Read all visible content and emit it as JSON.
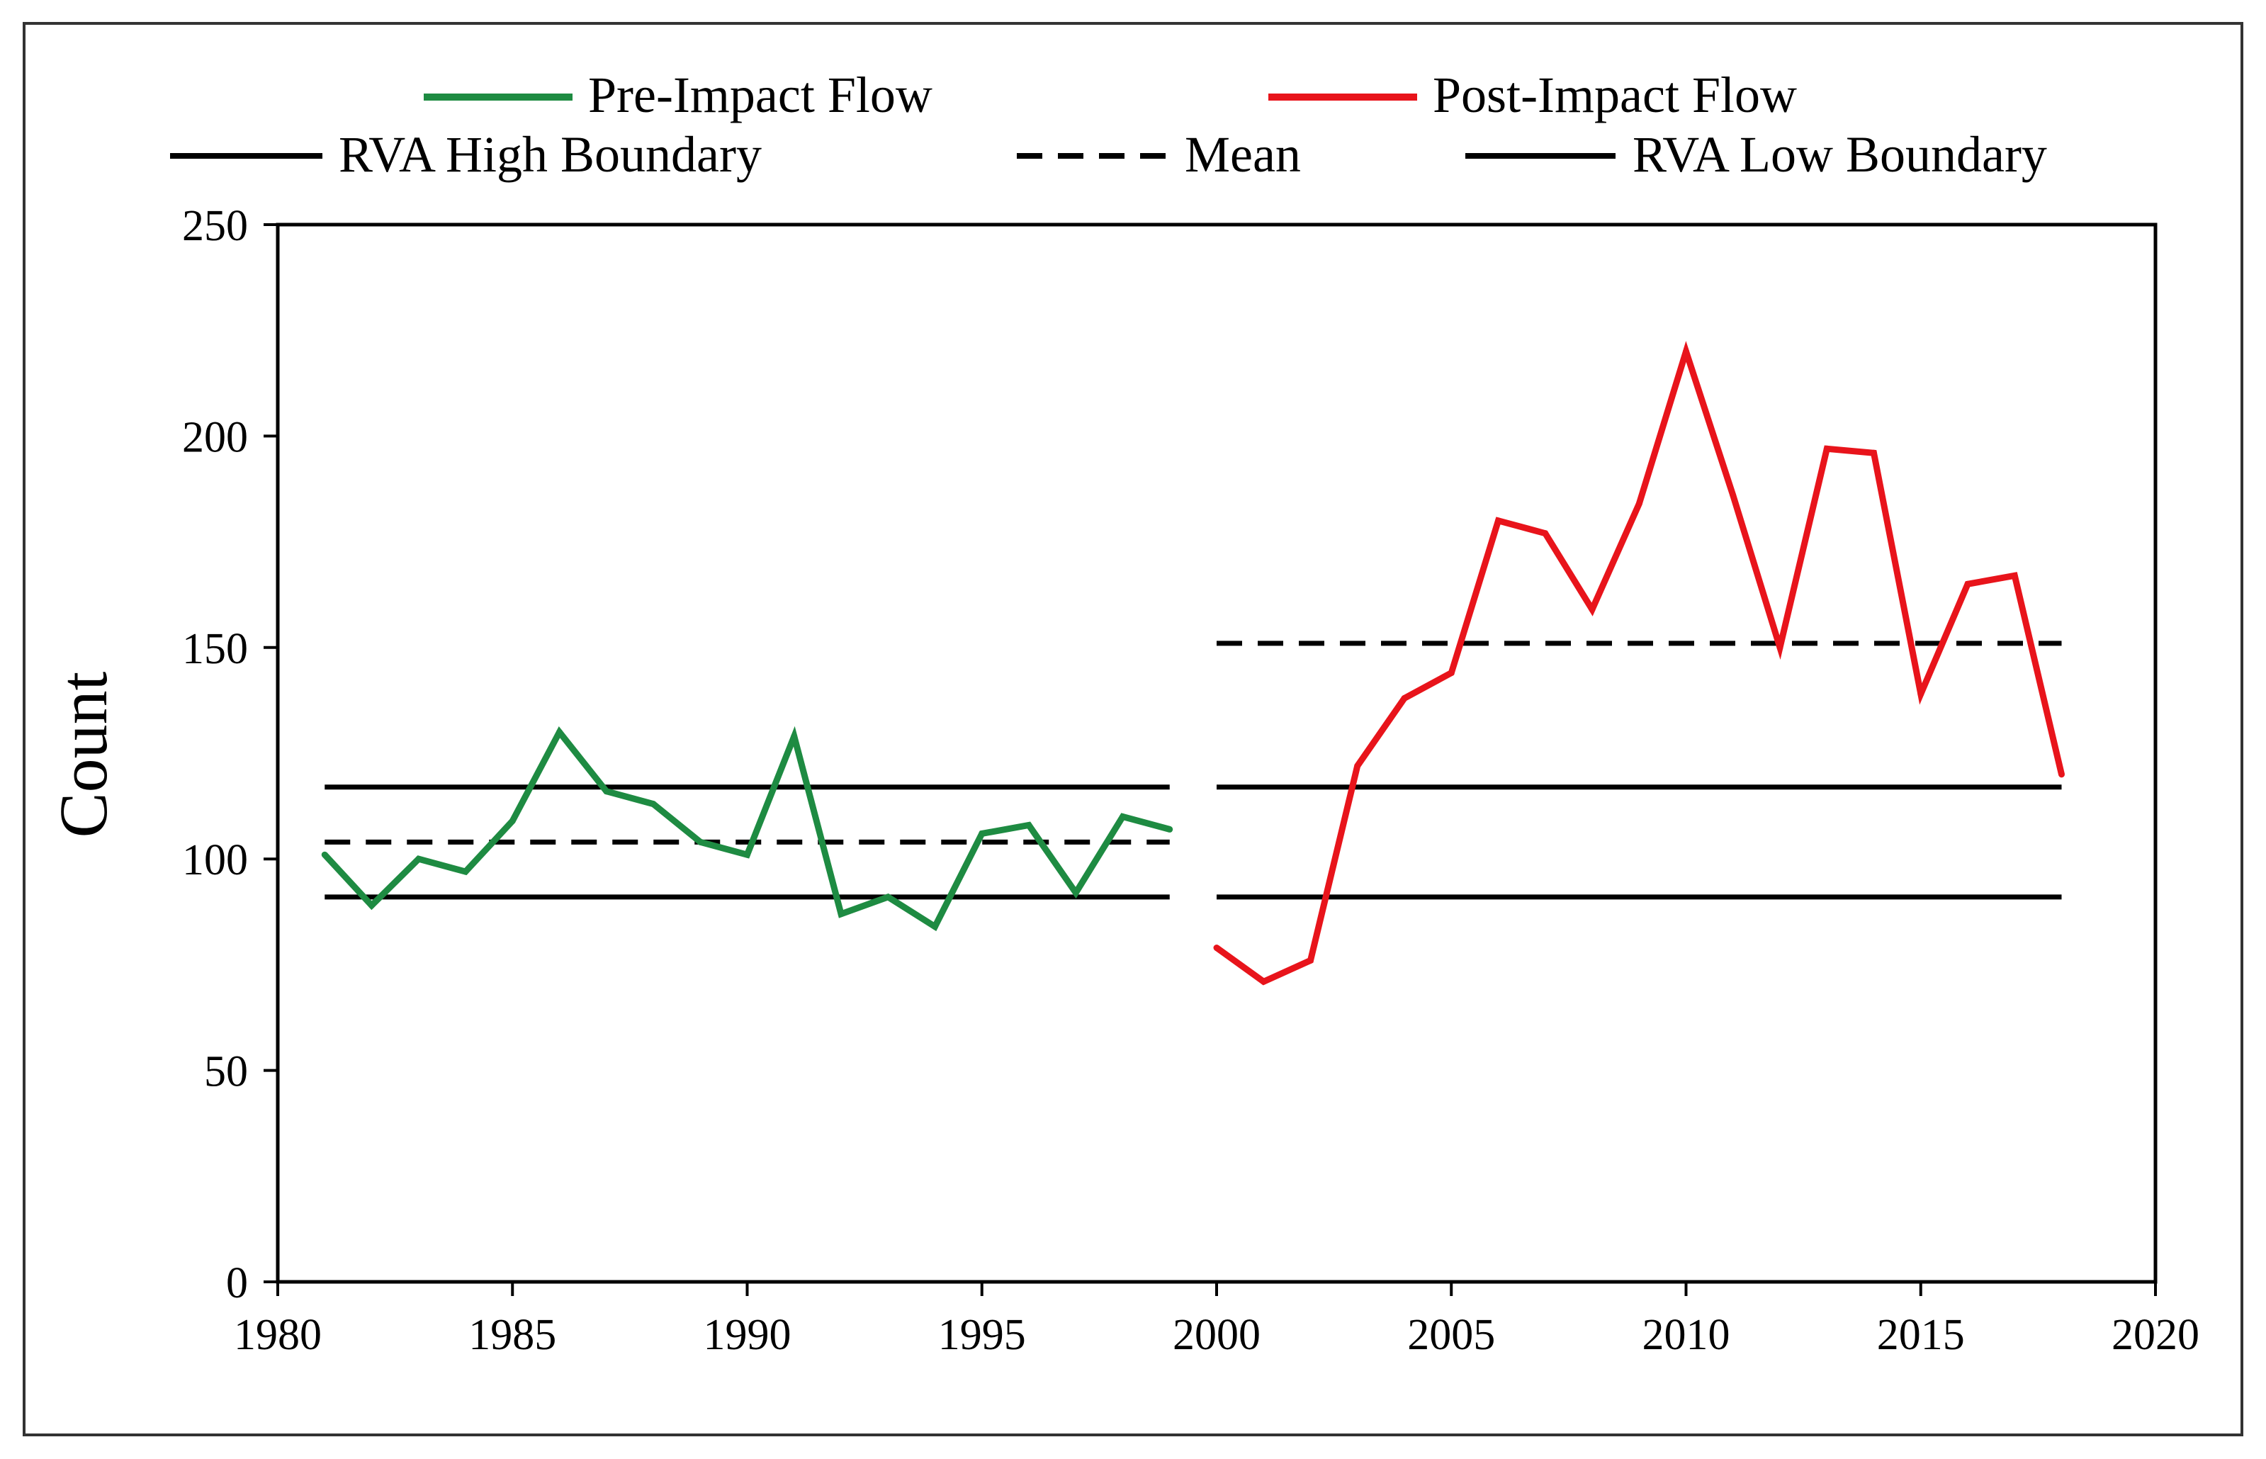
{
  "chart_data": {
    "type": "line",
    "title": "",
    "xlabel": "",
    "ylabel": "Count",
    "xlim": [
      1980,
      2020
    ],
    "ylim": [
      0,
      250
    ],
    "xticks": [
      "1980",
      "1985",
      "1990",
      "1995",
      "2000",
      "2005",
      "2010",
      "2015",
      "2020"
    ],
    "yticks": [
      "0",
      "50",
      "100",
      "150",
      "200",
      "250"
    ],
    "legend_position": "top",
    "series": [
      {
        "name": "Pre-Impact Flow",
        "color": "#1e8b42",
        "style": "solid",
        "x": [
          1981,
          1982,
          1983,
          1984,
          1985,
          1986,
          1987,
          1988,
          1989,
          1990,
          1991,
          1992,
          1993,
          1994,
          1995,
          1996,
          1997,
          1998,
          1999
        ],
        "values": [
          101,
          89,
          100,
          97,
          109,
          130,
          116,
          113,
          104,
          101,
          129,
          87,
          91,
          84,
          106,
          108,
          92,
          110,
          107
        ]
      },
      {
        "name": "Post-Impact Flow",
        "color": "#e8141b",
        "style": "solid",
        "x": [
          2000,
          2001,
          2002,
          2003,
          2004,
          2005,
          2006,
          2007,
          2008,
          2009,
          2010,
          2011,
          2012,
          2013,
          2014,
          2015,
          2016,
          2017,
          2018
        ],
        "values": [
          79,
          71,
          76,
          122,
          138,
          144,
          180,
          177,
          159,
          184,
          220,
          186,
          150,
          197,
          196,
          139,
          165,
          167,
          120
        ]
      }
    ],
    "reference_lines": [
      {
        "name": "RVA High Boundary",
        "style": "solid",
        "color": "#000000",
        "segments": [
          {
            "x": [
              1981,
              1999
            ],
            "value": 117
          },
          {
            "x": [
              2000,
              2018
            ],
            "value": 117
          }
        ]
      },
      {
        "name": "Mean",
        "style": "dashed",
        "color": "#000000",
        "segments": [
          {
            "x": [
              1981,
              1999
            ],
            "value": 104
          },
          {
            "x": [
              2000,
              2018
            ],
            "value": 151
          }
        ]
      },
      {
        "name": "RVA Low Boundary",
        "style": "solid",
        "color": "#000000",
        "segments": [
          {
            "x": [
              1981,
              1999
            ],
            "value": 91
          },
          {
            "x": [
              2000,
              2018
            ],
            "value": 91
          }
        ]
      }
    ]
  }
}
